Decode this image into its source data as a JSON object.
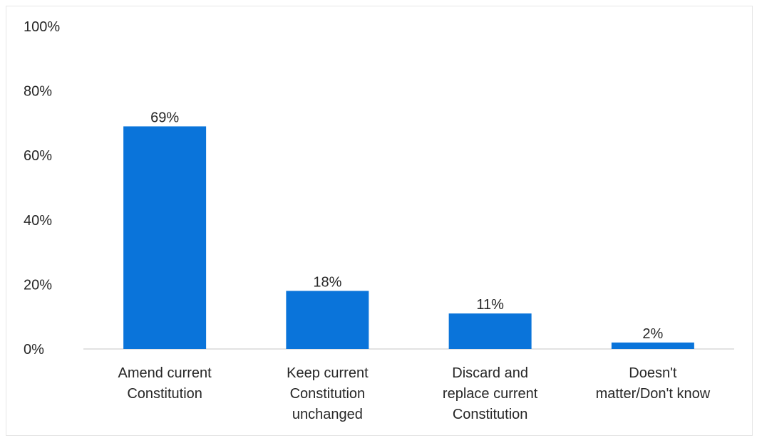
{
  "chart_data": {
    "type": "bar",
    "categories": [
      [
        "Amend current",
        "Constitution"
      ],
      [
        "Keep current",
        "Constitution",
        "unchanged"
      ],
      [
        "Discard and",
        "replace current",
        "Constitution"
      ],
      [
        "Doesn't",
        "matter/Don't know"
      ]
    ],
    "values": [
      69,
      18,
      11,
      2
    ],
    "value_labels": [
      "69%",
      "18%",
      "11%",
      "2%"
    ],
    "title": "",
    "xlabel": "",
    "ylabel": "",
    "ylim": [
      0,
      100
    ],
    "yticks": [
      0,
      20,
      40,
      60,
      80,
      100
    ],
    "ytick_labels": [
      "0%",
      "20%",
      "40%",
      "60%",
      "80%",
      "100%"
    ],
    "grid": false,
    "legend": "none",
    "colors": {
      "bar": "#0a74da",
      "axis": "#d9d9d9",
      "text": "#262626",
      "frame": "#e6e6e6"
    }
  }
}
